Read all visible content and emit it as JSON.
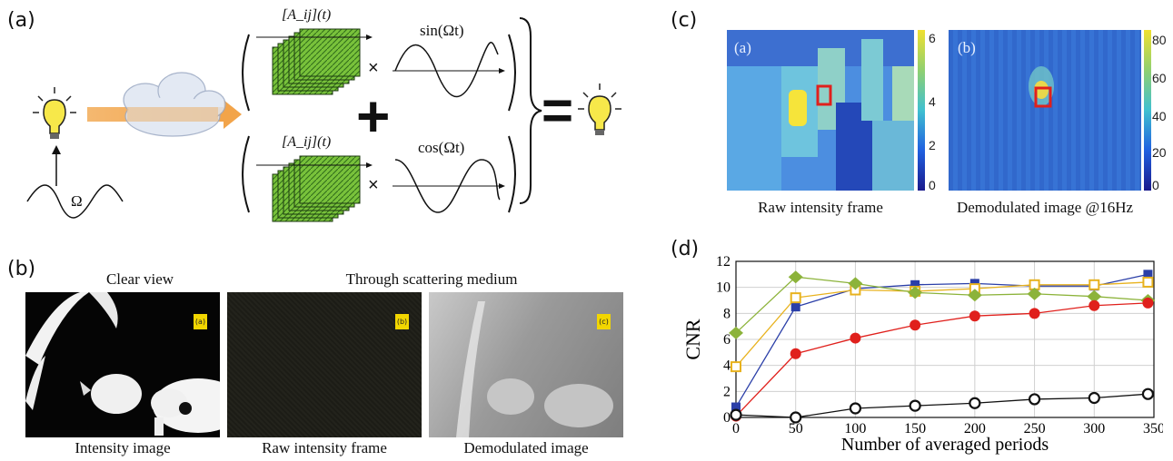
{
  "panel_a": {
    "label": "(a)",
    "matrix_top": "[A_ij](t)",
    "matrix_bottom": "[A_ij](t)",
    "times_top": "×",
    "times_bottom": "×",
    "sin_label": "sin(Ωt)",
    "cos_label": "cos(Ωt)",
    "omega_label": "Ω",
    "plus": "+",
    "equals": "="
  },
  "panel_b": {
    "label": "(b)",
    "header_clear": "Clear view",
    "header_through": "Through scattering medium",
    "images": [
      {
        "badge": "(a)",
        "caption": "Intensity image"
      },
      {
        "badge": "(b)",
        "caption": "Raw intensity frame"
      },
      {
        "badge": "(c)",
        "caption": "Demodulated image"
      }
    ]
  },
  "panel_c": {
    "label": "(c)",
    "heatmaps": [
      {
        "tag": "(a)",
        "caption": "Raw intensity frame",
        "colorbar_ticks": [
          "6",
          "4",
          "2",
          "0"
        ]
      },
      {
        "tag": "(b)",
        "caption": "Demodulated image @16Hz",
        "colorbar_ticks": [
          "80",
          "60",
          "40",
          "20",
          "0"
        ]
      }
    ]
  },
  "panel_d": {
    "label": "(d)"
  },
  "chart_data": {
    "type": "line",
    "xlabel": "Number of averaged periods",
    "ylabel": "CNR",
    "xlim": [
      0,
      350
    ],
    "ylim": [
      0,
      12
    ],
    "xticks": [
      0,
      50,
      100,
      150,
      200,
      250,
      300,
      350
    ],
    "yticks": [
      0,
      2,
      4,
      6,
      8,
      10,
      12
    ],
    "grid": true,
    "x": [
      0,
      50,
      100,
      150,
      200,
      250,
      300,
      345
    ],
    "series": [
      {
        "color": "#2b3fa8",
        "marker": "square",
        "values": [
          0.8,
          8.5,
          9.9,
          10.2,
          10.3,
          10.1,
          10.1,
          11.0
        ]
      },
      {
        "color": "#e8b21e",
        "marker": "open-square",
        "values": [
          3.9,
          9.2,
          9.8,
          9.7,
          9.9,
          10.2,
          10.2,
          10.4
        ]
      },
      {
        "color": "#8cb33a",
        "marker": "diamond",
        "values": [
          6.5,
          10.8,
          10.3,
          9.6,
          9.4,
          9.5,
          9.3,
          9.0
        ]
      },
      {
        "color": "#e0201c",
        "marker": "circle",
        "values": [
          0.1,
          4.9,
          6.1,
          7.1,
          7.8,
          8.0,
          8.6,
          8.8
        ]
      },
      {
        "color": "#111111",
        "marker": "open-circle",
        "values": [
          0.2,
          0.0,
          0.7,
          0.9,
          1.1,
          1.4,
          1.5,
          1.8
        ]
      }
    ]
  }
}
